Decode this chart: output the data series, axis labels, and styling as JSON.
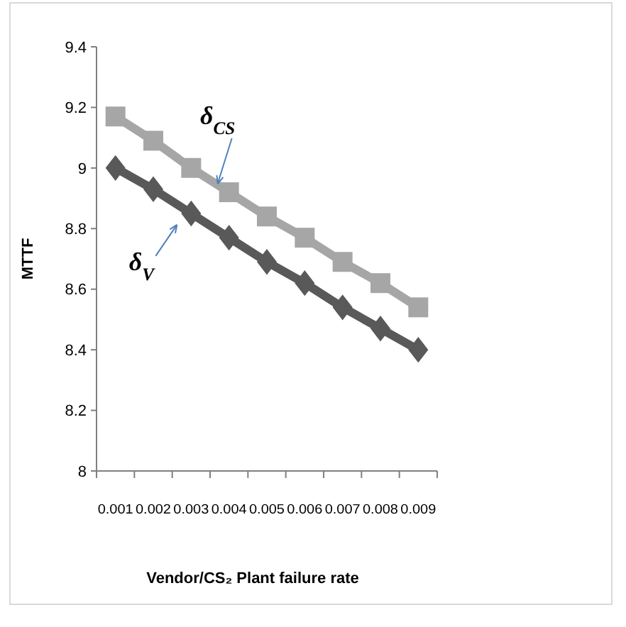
{
  "chart_data": {
    "type": "line",
    "xlabel": "Vendor/CS₂ Plant failure rate",
    "ylabel": "MTTF",
    "categories": [
      "0.001",
      "0.002",
      "0.003",
      "0.004",
      "0.005",
      "0.006",
      "0.007",
      "0.008",
      "0.009"
    ],
    "series": [
      {
        "name": "δ$_{CS}$",
        "color": "#a6a6a6",
        "marker": "square",
        "values": [
          9.17,
          9.09,
          9.0,
          8.92,
          8.84,
          8.77,
          8.69,
          8.62,
          8.54
        ]
      },
      {
        "name": "δ$_{V}$",
        "color": "#595959",
        "marker": "diamond",
        "values": [
          9.0,
          8.93,
          8.85,
          8.77,
          8.69,
          8.62,
          8.54,
          8.47,
          8.4
        ]
      }
    ],
    "ylim": [
      8,
      9.4
    ],
    "yticks": [
      8,
      8.2,
      8.4,
      8.6,
      8.8,
      9,
      9.2,
      9.4
    ],
    "grid": false,
    "line_style": "solid"
  }
}
